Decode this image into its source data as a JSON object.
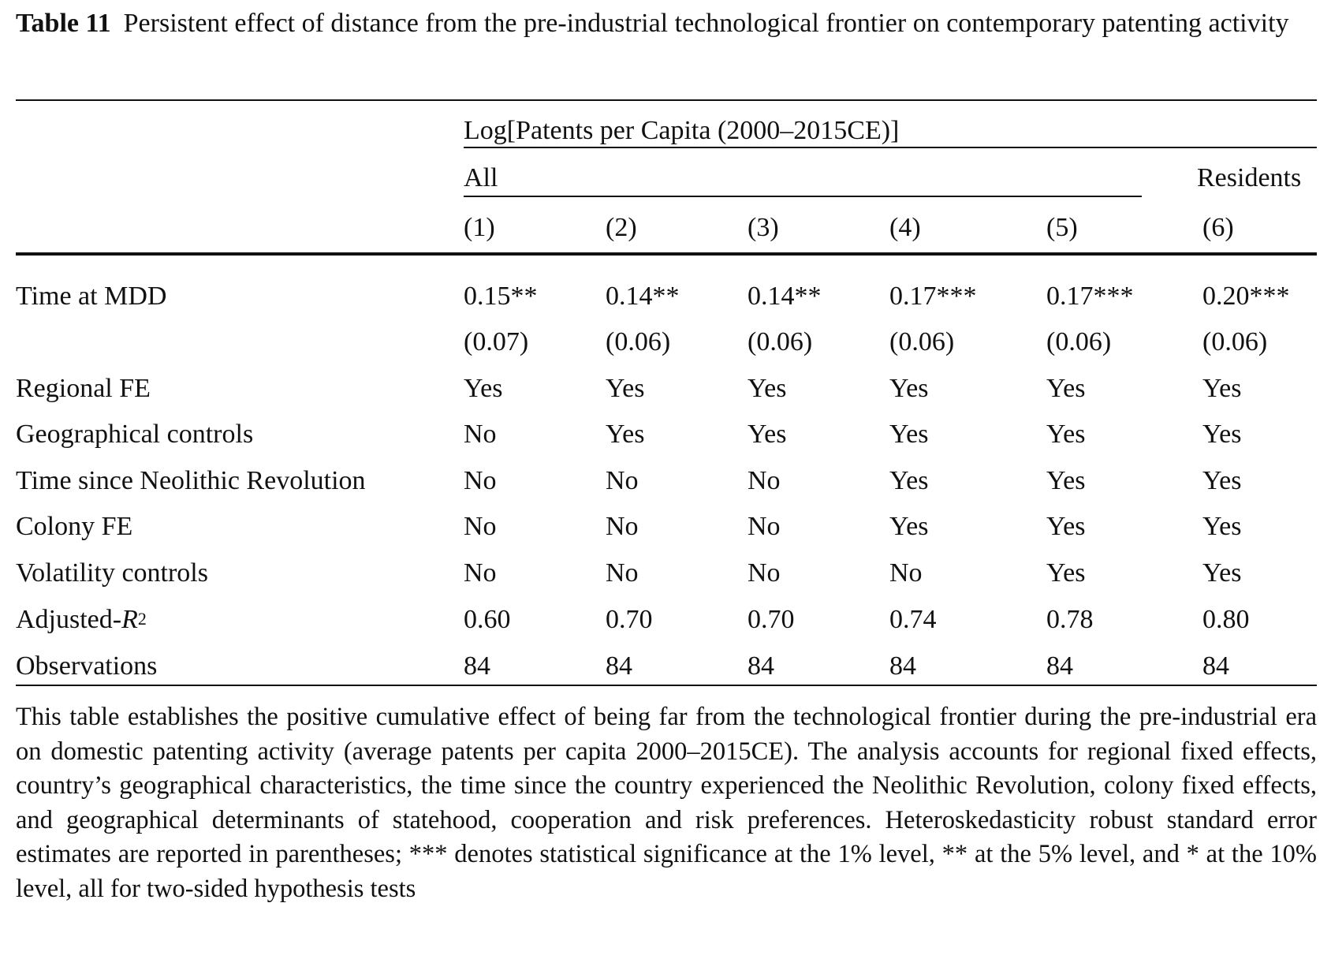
{
  "table": {
    "label": "Table 11",
    "title": "Persistent effect of distance from the pre-industrial technological frontier on contemporary patenting activity",
    "dep_var": "Log[Patents per Capita (2000–2015CE)]",
    "group_all": "All",
    "group_residents": "Residents",
    "columns": [
      "(1)",
      "(2)",
      "(3)",
      "(4)",
      "(5)",
      "(6)"
    ],
    "rows": [
      {
        "label": "Time at MDD",
        "values": [
          "0.15**",
          "0.14**",
          "0.14**",
          "0.17***",
          "0.17***",
          "0.20***"
        ]
      },
      {
        "label": "",
        "values": [
          "(0.07)",
          "(0.06)",
          "(0.06)",
          "(0.06)",
          "(0.06)",
          "(0.06)"
        ]
      },
      {
        "label": "Regional FE",
        "values": [
          "Yes",
          "Yes",
          "Yes",
          "Yes",
          "Yes",
          "Yes"
        ]
      },
      {
        "label": "Geographical controls",
        "values": [
          "No",
          "Yes",
          "Yes",
          "Yes",
          "Yes",
          "Yes"
        ]
      },
      {
        "label": "Time since Neolithic Revolution",
        "values": [
          "No",
          "No",
          "No",
          "Yes",
          "Yes",
          "Yes"
        ]
      },
      {
        "label": "Colony FE",
        "values": [
          "No",
          "No",
          "No",
          "Yes",
          "Yes",
          "Yes"
        ]
      },
      {
        "label": "Volatility controls",
        "values": [
          "No",
          "No",
          "No",
          "No",
          "Yes",
          "Yes"
        ]
      },
      {
        "label_prefix": "Adjusted-",
        "label_var": "R",
        "label_sup": "2",
        "values": [
          "0.60",
          "0.70",
          "0.70",
          "0.74",
          "0.78",
          "0.80"
        ]
      },
      {
        "label": "Observations",
        "values": [
          "84",
          "84",
          "84",
          "84",
          "84",
          "84"
        ]
      }
    ],
    "note": "This table establishes the positive cumulative effect of being far from the technological frontier during the pre-industrial era on domestic patenting activity (average patents per capita 2000–2015CE). The analysis accounts for regional fixed effects, country’s geographical characteristics, the time since the country experienced the Neolithic Revolution, colony fixed effects, and geographical determinants of statehood, cooperation and risk preferences. Heteroskedasticity robust standard error estimates are reported in parentheses; *** denotes statistical significance at the 1% level, ** at the 5% level, and * at the 10% level, all for two-sided hypothesis tests"
  }
}
